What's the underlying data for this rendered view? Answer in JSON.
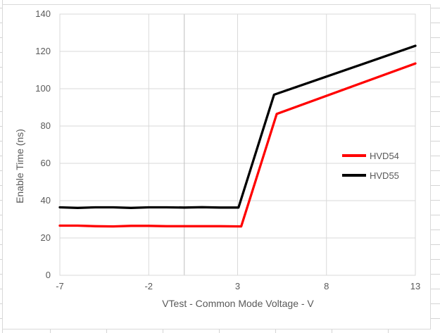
{
  "chart_data": {
    "type": "line",
    "title": "",
    "xlabel": "VTest - Common Mode Voltage - V",
    "ylabel": "Enable Time (ns)",
    "xlim": [
      -7,
      13
    ],
    "ylim": [
      0,
      140
    ],
    "xticks": [
      -7,
      -2,
      3,
      8,
      13
    ],
    "yticks": [
      0,
      20,
      40,
      60,
      80,
      100,
      120,
      140
    ],
    "grid": true,
    "zero_line_x": 0,
    "legend_position": "middle-right",
    "series": [
      {
        "name": "HVD54",
        "color": "#FF0000",
        "points": [
          [
            -7,
            26.6
          ],
          [
            -6,
            26.6
          ],
          [
            -5,
            26.3
          ],
          [
            -4,
            26.2
          ],
          [
            -3,
            26.5
          ],
          [
            -2,
            26.5
          ],
          [
            -1,
            26.3
          ],
          [
            0,
            26.3
          ],
          [
            1,
            26.3
          ],
          [
            2,
            26.3
          ],
          [
            3.2,
            26.2
          ],
          [
            5.2,
            86.5
          ],
          [
            13,
            113.5
          ]
        ]
      },
      {
        "name": "HVD55",
        "color": "#000000",
        "points": [
          [
            -7,
            36.4
          ],
          [
            -6,
            36.1
          ],
          [
            -5,
            36.4
          ],
          [
            -4,
            36.4
          ],
          [
            -3,
            36.1
          ],
          [
            -2,
            36.4
          ],
          [
            -1,
            36.4
          ],
          [
            0,
            36.3
          ],
          [
            1,
            36.5
          ],
          [
            2,
            36.3
          ],
          [
            3.05,
            36.3
          ],
          [
            5.05,
            96.8
          ],
          [
            13,
            123
          ]
        ]
      }
    ]
  },
  "colors": {
    "grid": "#D9D9D9",
    "zero_line": "#BFBFBF",
    "chart_border": "#D9D9D9",
    "sheet_grid": "#D4D4D4",
    "text": "#595959",
    "background": "#FFFFFF"
  }
}
